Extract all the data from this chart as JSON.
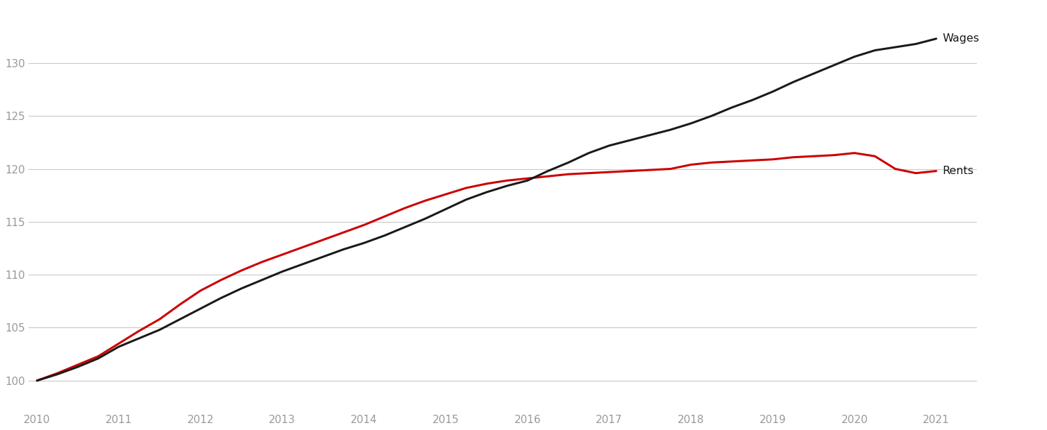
{
  "wages_x": [
    2010.0,
    2010.25,
    2010.5,
    2010.75,
    2011.0,
    2011.25,
    2011.5,
    2011.75,
    2012.0,
    2012.25,
    2012.5,
    2012.75,
    2013.0,
    2013.25,
    2013.5,
    2013.75,
    2014.0,
    2014.25,
    2014.5,
    2014.75,
    2015.0,
    2015.25,
    2015.5,
    2015.75,
    2016.0,
    2016.25,
    2016.5,
    2016.75,
    2017.0,
    2017.25,
    2017.5,
    2017.75,
    2018.0,
    2018.25,
    2018.5,
    2018.75,
    2019.0,
    2019.25,
    2019.5,
    2019.75,
    2020.0,
    2020.25,
    2020.5,
    2020.75,
    2021.0
  ],
  "wages_y": [
    100.0,
    100.6,
    101.3,
    102.1,
    103.2,
    104.0,
    104.8,
    105.8,
    106.8,
    107.8,
    108.7,
    109.5,
    110.3,
    111.0,
    111.7,
    112.4,
    113.0,
    113.7,
    114.5,
    115.3,
    116.2,
    117.1,
    117.8,
    118.4,
    118.9,
    119.8,
    120.6,
    121.5,
    122.2,
    122.7,
    123.2,
    123.7,
    124.3,
    125.0,
    125.8,
    126.5,
    127.3,
    128.2,
    129.0,
    129.8,
    130.6,
    131.2,
    131.5,
    131.8,
    132.3
  ],
  "rents_x": [
    2010.0,
    2010.25,
    2010.5,
    2010.75,
    2011.0,
    2011.25,
    2011.5,
    2011.75,
    2012.0,
    2012.25,
    2012.5,
    2012.75,
    2013.0,
    2013.25,
    2013.5,
    2013.75,
    2014.0,
    2014.25,
    2014.5,
    2014.75,
    2015.0,
    2015.25,
    2015.5,
    2015.75,
    2016.0,
    2016.25,
    2016.5,
    2016.75,
    2017.0,
    2017.25,
    2017.5,
    2017.75,
    2018.0,
    2018.25,
    2018.5,
    2018.75,
    2019.0,
    2019.25,
    2019.5,
    2019.75,
    2020.0,
    2020.25,
    2020.5,
    2020.75,
    2021.0
  ],
  "rents_y": [
    100.0,
    100.7,
    101.5,
    102.3,
    103.5,
    104.7,
    105.8,
    107.2,
    108.5,
    109.5,
    110.4,
    111.2,
    111.9,
    112.6,
    113.3,
    114.0,
    114.7,
    115.5,
    116.3,
    117.0,
    117.6,
    118.2,
    118.6,
    118.9,
    119.1,
    119.3,
    119.5,
    119.6,
    119.7,
    119.8,
    119.9,
    120.0,
    120.4,
    120.6,
    120.7,
    120.8,
    120.9,
    121.1,
    121.2,
    121.3,
    121.5,
    121.2,
    120.0,
    119.6,
    119.8
  ],
  "wages_color": "#1a1a1a",
  "rents_color": "#cc0000",
  "background_color": "#ffffff",
  "grid_color": "#c8c8c8",
  "line_width": 2.2,
  "xlim_min": 2009.9,
  "xlim_max": 2021.5,
  "ylim_min": 97.5,
  "ylim_max": 135.5,
  "yticks": [
    100,
    105,
    110,
    115,
    120,
    125,
    130
  ],
  "xticks": [
    2010,
    2011,
    2012,
    2013,
    2014,
    2015,
    2016,
    2017,
    2018,
    2019,
    2020,
    2021
  ],
  "wages_label": "Wages",
  "rents_label": "Rents",
  "label_fontsize": 11.5,
  "tick_fontsize": 11,
  "tick_color": "#999999"
}
